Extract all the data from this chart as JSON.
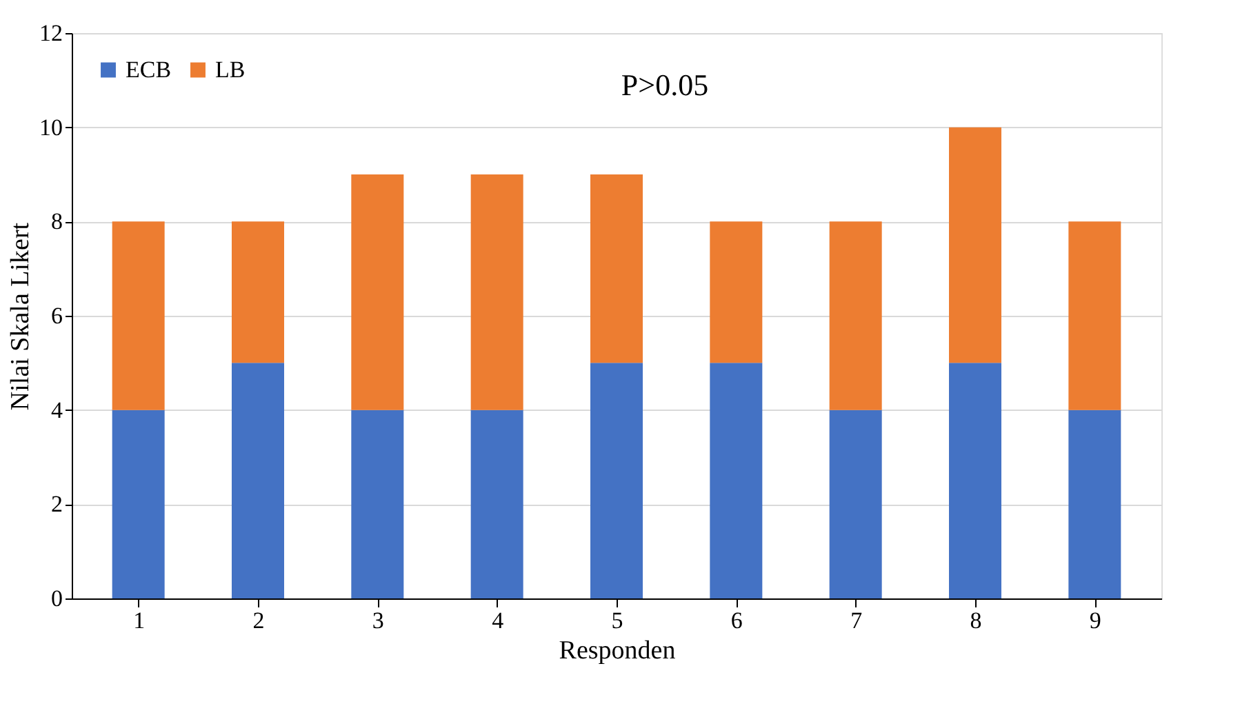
{
  "chart_data": {
    "type": "bar",
    "stacked": true,
    "xlabel": "Responden",
    "ylabel": "Nilai Skala Likert",
    "annotations": [
      "P>0.05"
    ],
    "categories": [
      "1",
      "2",
      "3",
      "4",
      "5",
      "6",
      "7",
      "8",
      "9"
    ],
    "series": [
      {
        "name": "ECB",
        "color": "#4472c4",
        "values": [
          4,
          5,
          4,
          4,
          5,
          5,
          4,
          5,
          4
        ]
      },
      {
        "name": "LB",
        "color": "#ed7d31",
        "values": [
          4,
          3,
          5,
          5,
          4,
          3,
          4,
          5,
          4
        ]
      }
    ],
    "ylim": [
      0,
      12
    ],
    "yticks": [
      0,
      2,
      4,
      6,
      8,
      10,
      12
    ],
    "grid": "y",
    "legend": "top left"
  }
}
